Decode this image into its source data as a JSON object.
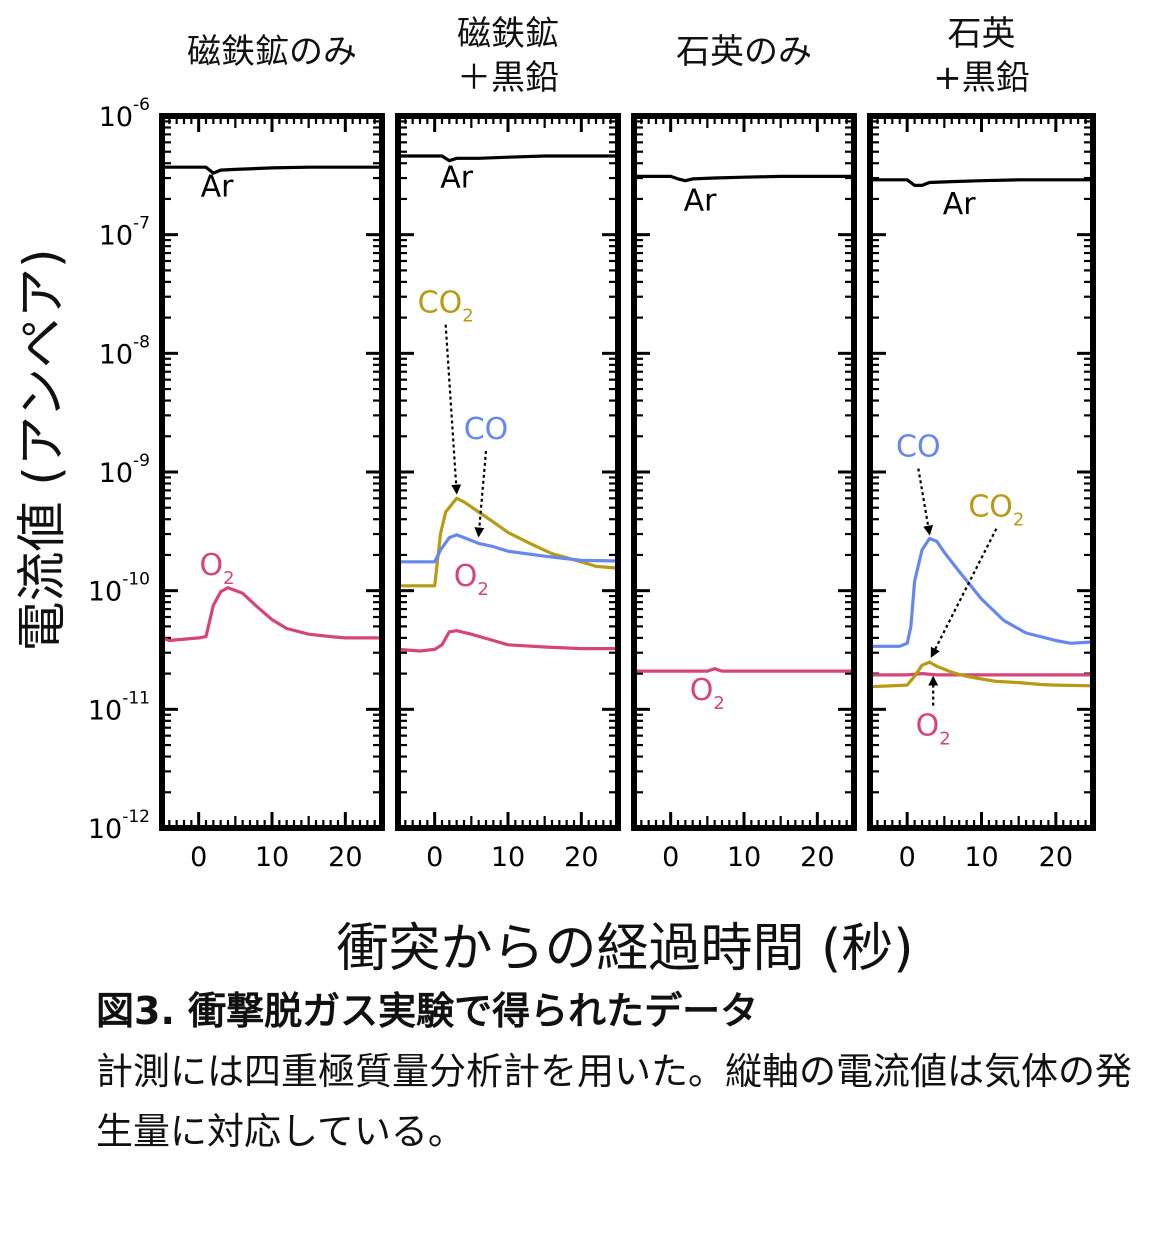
{
  "figure": {
    "ylabel": "電流値 (アンペア)",
    "xlabel": "衝突からの経過時間 (秒)",
    "caption_title": "図3. 衝撃脱ガス実験で得られたデータ",
    "caption_body": "計測には四重極質量分析計を用いた。縦軸の電流値は気体の発生量に対応している。"
  },
  "colors": {
    "Ar": "#000000",
    "O2": "#d6457a",
    "CO": "#6688ee",
    "CO2": "#b89a14"
  },
  "chart_data": [
    {
      "type": "line",
      "title": "磁鉄鉱のみ",
      "xlabel": "衝突からの経過時間 (秒)",
      "ylabel": "電流値 (アンペア)",
      "yscale": "log",
      "xlim": [
        -5,
        25
      ],
      "ylim": [
        1e-12,
        1e-06
      ],
      "xticks": [
        0,
        10,
        20
      ],
      "yticks": [
        "10^-12",
        "10^-11",
        "10^-10",
        "10^-9",
        "10^-8",
        "10^-7",
        "10^-6"
      ],
      "ytick_labels": [
        {
          "base": "10",
          "exp": "-12"
        },
        {
          "base": "10",
          "exp": "-11"
        },
        {
          "base": "10",
          "exp": "-10"
        },
        {
          "base": "10",
          "exp": "-9"
        },
        {
          "base": "10",
          "exp": "-8"
        },
        {
          "base": "10",
          "exp": "-7"
        },
        {
          "base": "10",
          "exp": "-6"
        }
      ],
      "series": [
        {
          "name": "Ar",
          "color": "#000000",
          "x": [
            -5,
            1,
            2,
            3,
            5,
            10,
            15,
            20,
            25
          ],
          "y": [
            3.7e-07,
            3.7e-07,
            3.3e-07,
            3.5e-07,
            3.55e-07,
            3.65e-07,
            3.7e-07,
            3.7e-07,
            3.7e-07
          ]
        },
        {
          "name": "O",
          "sub": "2",
          "color": "#d6457a",
          "x": [
            -5,
            -4,
            0,
            1,
            2,
            3,
            4,
            6,
            8,
            10,
            12,
            15,
            18,
            20,
            25
          ],
          "y": [
            4e-11,
            3.8e-11,
            4e-11,
            4.1e-11,
            7.5e-11,
            9.8e-11,
            1.06e-10,
            9.5e-11,
            7.3e-11,
            5.7e-11,
            4.8e-11,
            4.3e-11,
            4.1e-11,
            4e-11,
            4e-11
          ]
        }
      ],
      "annotations": [
        {
          "text": "Ar",
          "x": 2.5,
          "y": 2.1e-07
        },
        {
          "text": "O",
          "sub": "2",
          "x": 2.5,
          "y": 1.35e-10
        }
      ]
    },
    {
      "type": "line",
      "title": "磁鉄鉱\n＋黒鉛",
      "title_lines": [
        "磁鉄鉱",
        "＋黒鉛"
      ],
      "yscale": "log",
      "xlim": [
        -5,
        25
      ],
      "ylim": [
        1e-12,
        1e-06
      ],
      "xticks": [
        0,
        10,
        20
      ],
      "series": [
        {
          "name": "Ar",
          "color": "#000000",
          "x": [
            -5,
            1,
            2,
            3,
            6,
            10,
            15,
            25
          ],
          "y": [
            4.6e-07,
            4.6e-07,
            4.2e-07,
            4.4e-07,
            4.4e-07,
            4.5e-07,
            4.6e-07,
            4.6e-07
          ]
        },
        {
          "name": "CO",
          "sub": "2",
          "color": "#b89a14",
          "x": [
            -5,
            0,
            0.8,
            1.5,
            3,
            4,
            6,
            8,
            10,
            13,
            16,
            20,
            22,
            25
          ],
          "y": [
            1.1e-10,
            1.1e-10,
            3e-10,
            4.6e-10,
            6e-10,
            5.6e-10,
            4.6e-10,
            3.8e-10,
            3.1e-10,
            2.5e-10,
            2.05e-10,
            1.75e-10,
            1.6e-10,
            1.55e-10
          ]
        },
        {
          "name": "CO",
          "color": "#6688ee",
          "x": [
            -5,
            0,
            0.8,
            2,
            3,
            4,
            6,
            8,
            10,
            15,
            20,
            25
          ],
          "y": [
            1.75e-10,
            1.75e-10,
            2.2e-10,
            2.8e-10,
            2.95e-10,
            2.8e-10,
            2.5e-10,
            2.35e-10,
            2.15e-10,
            1.95e-10,
            1.8e-10,
            1.78e-10
          ]
        },
        {
          "name": "O",
          "sub": "2",
          "color": "#d6457a",
          "x": [
            -5,
            -2,
            0,
            1,
            2,
            3,
            5,
            8,
            10,
            15,
            20,
            25
          ],
          "y": [
            3.2e-11,
            3.1e-11,
            3.2e-11,
            3.5e-11,
            4.5e-11,
            4.6e-11,
            4.3e-11,
            3.8e-11,
            3.5e-11,
            3.35e-11,
            3.25e-11,
            3.25e-11
          ]
        }
      ],
      "annotations": [
        {
          "text": "Ar",
          "x": 3,
          "y": 2.5e-07
        },
        {
          "text": "CO",
          "sub": "2",
          "x": 1.5,
          "y": 2.2e-08,
          "arrow_to": [
            3,
            6.2e-10
          ]
        },
        {
          "text": "CO",
          "x": 7,
          "y": 1.9e-09,
          "arrow_to": [
            6,
            2.7e-10
          ]
        },
        {
          "text": "O",
          "sub": "2",
          "x": 5,
          "y": 1.1e-10
        }
      ]
    },
    {
      "type": "line",
      "title": "石英のみ",
      "yscale": "log",
      "xlim": [
        -5,
        25
      ],
      "ylim": [
        1e-12,
        1e-06
      ],
      "xticks": [
        0,
        10,
        20
      ],
      "series": [
        {
          "name": "Ar",
          "color": "#000000",
          "x": [
            -5,
            0,
            1,
            2,
            3,
            6,
            10,
            15,
            25
          ],
          "y": [
            3.1e-07,
            3.1e-07,
            2.95e-07,
            2.85e-07,
            2.95e-07,
            3e-07,
            3.05e-07,
            3.1e-07,
            3.1e-07
          ]
        },
        {
          "name": "O",
          "sub": "2",
          "color": "#d6457a",
          "x": [
            -5,
            0,
            5,
            6,
            7,
            10,
            20,
            25
          ],
          "y": [
            2.1e-11,
            2.1e-11,
            2.1e-11,
            2.2e-11,
            2.1e-11,
            2.1e-11,
            2.1e-11,
            2.1e-11
          ]
        }
      ],
      "annotations": [
        {
          "text": "Ar",
          "x": 4,
          "y": 1.6e-07
        },
        {
          "text": "O",
          "sub": "2",
          "x": 5,
          "y": 1.2e-11
        }
      ]
    },
    {
      "type": "line",
      "title": "石英\n+黒鉛",
      "title_lines": [
        "石英",
        "+黒鉛"
      ],
      "yscale": "log",
      "xlim": [
        -5,
        25
      ],
      "ylim": [
        1e-12,
        1e-06
      ],
      "xticks": [
        0,
        10,
        20
      ],
      "series": [
        {
          "name": "Ar",
          "color": "#000000",
          "x": [
            -5,
            0,
            1,
            2,
            3,
            6,
            10,
            15,
            25
          ],
          "y": [
            2.9e-07,
            2.9e-07,
            2.6e-07,
            2.6e-07,
            2.75e-07,
            2.8e-07,
            2.85e-07,
            2.9e-07,
            2.9e-07
          ]
        },
        {
          "name": "CO",
          "color": "#6688ee",
          "x": [
            -5,
            -1,
            0,
            0.5,
            1,
            2,
            3,
            4,
            5,
            7,
            10,
            13,
            16,
            20,
            22,
            25
          ],
          "y": [
            3.4e-11,
            3.4e-11,
            3.6e-11,
            5e-11,
            1.2e-10,
            2.2e-10,
            2.75e-10,
            2.6e-10,
            2.1e-10,
            1.45e-10,
            8.5e-11,
            5.6e-11,
            4.4e-11,
            3.8e-11,
            3.6e-11,
            3.7e-11
          ]
        },
        {
          "name": "O",
          "sub": "2",
          "color": "#d6457a",
          "x": [
            -5,
            0,
            2,
            4,
            6,
            10,
            15,
            20,
            25
          ],
          "y": [
            1.95e-11,
            1.95e-11,
            2e-11,
            1.95e-11,
            1.95e-11,
            1.95e-11,
            1.95e-11,
            1.95e-11,
            1.95e-11
          ]
        },
        {
          "name": "CO",
          "sub": "2",
          "color": "#b89a14",
          "x": [
            -5,
            0,
            1,
            2,
            3,
            4,
            6,
            8,
            10,
            12,
            15,
            18,
            20,
            25
          ],
          "y": [
            1.55e-11,
            1.6e-11,
            1.9e-11,
            2.35e-11,
            2.5e-11,
            2.3e-11,
            2.05e-11,
            1.9e-11,
            1.8e-11,
            1.72e-11,
            1.68e-11,
            1.62e-11,
            1.6e-11,
            1.58e-11
          ]
        }
      ],
      "annotations": [
        {
          "text": "Ar",
          "x": 7,
          "y": 1.5e-07
        },
        {
          "text": "CO",
          "x": 1.5,
          "y": 1.35e-09,
          "arrow_to": [
            3,
            2.8e-10
          ]
        },
        {
          "text": "CO",
          "sub": "2",
          "x": 12,
          "y": 4.2e-10,
          "arrow_to": [
            3.3,
            2.6e-11
          ]
        },
        {
          "text": "O",
          "sub": "2",
          "x": 3.5,
          "y": 6e-12,
          "arrow_to": [
            3.5,
            2e-11
          ]
        }
      ]
    }
  ]
}
